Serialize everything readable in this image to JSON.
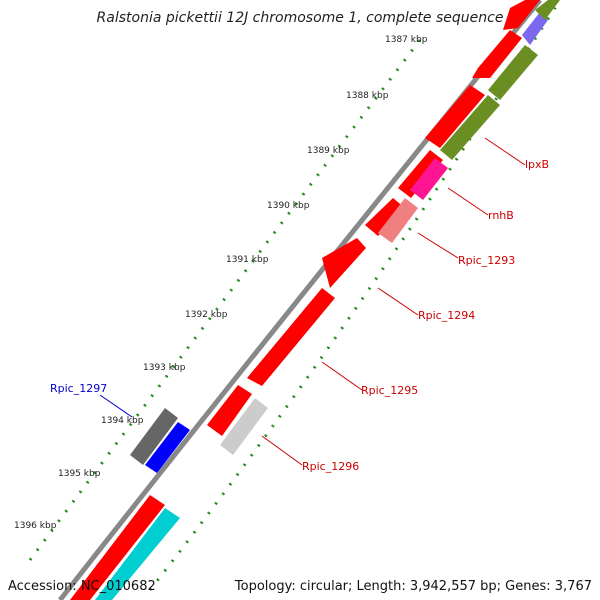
{
  "title": "Ralstonia pickettii 12J chromosome 1, complete sequence",
  "footer": {
    "accession": "Accession: NC_010682",
    "summary": "Topology: circular; Length: 3,942,557 bp; Genes: 3,767"
  },
  "ticks": [
    "1387 kbp",
    "1388 kbp",
    "1389 kbp",
    "1390 kbp",
    "1391 kbp",
    "1392 kbp",
    "1393 kbp",
    "1394 kbp",
    "1395 kbp",
    "1396 kbp"
  ],
  "gene_labels": [
    {
      "text": "lpxB",
      "color": "#cc0000"
    },
    {
      "text": "rnhB",
      "color": "#cc0000"
    },
    {
      "text": "Rpic_1293",
      "color": "#cc0000"
    },
    {
      "text": "Rpic_1294",
      "color": "#cc0000"
    },
    {
      "text": "Rpic_1295",
      "color": "#cc0000"
    },
    {
      "text": "Rpic_1296",
      "color": "#cc0000"
    },
    {
      "text": "Rpic_1297",
      "color": "#0000cc"
    }
  ],
  "colors": {
    "forward_cds": "#ff0000",
    "olive": "#6b8e23",
    "magenta": "#ff1493",
    "salmon": "#f08080",
    "light_gray": "#cccccc",
    "dark_gray": "#666666",
    "blue": "#0000ff",
    "cyan": "#00ced1",
    "lavender": "#7b68ee",
    "backbone": "#888888",
    "tick_dots": "#228b22"
  }
}
